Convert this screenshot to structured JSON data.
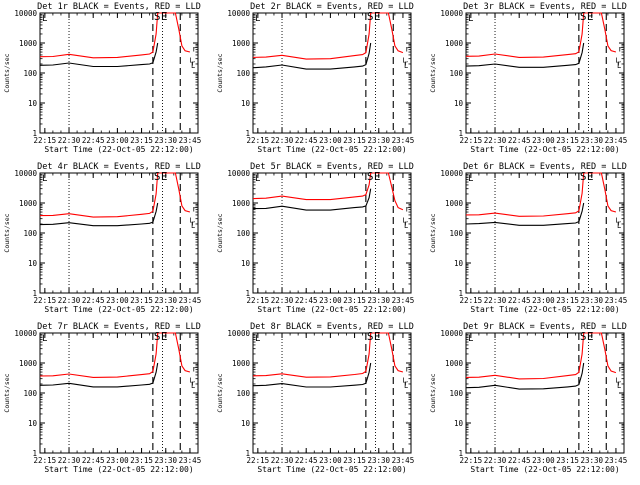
{
  "figure": {
    "xlabel": "Start Time (22-Oct-05 22:12:00)",
    "ylabel": "Counts/sec",
    "x_ticks": [
      "22:15",
      "22:30",
      "22:45",
      "23:00",
      "23:15",
      "23:30",
      "23:45"
    ],
    "y_ticks": [
      "1",
      "10",
      "100",
      "1000",
      "10000"
    ],
    "markers": [
      "S",
      "E",
      "L",
      "r",
      "L",
      "r",
      "L"
    ]
  },
  "colors": {
    "events": "#000000",
    "lld": "#ff0000",
    "axes": "#000000"
  },
  "chart_data": [
    {
      "type": "line",
      "title": "Det 1r BLACK = Events, RED = LLD",
      "xlabel": "Start Time (22-Oct-05 22:12:00)",
      "ylabel": "Counts/sec",
      "y_scale": "log",
      "ylim": [
        1,
        10000
      ],
      "xlim": [
        "22:12",
        "23:50"
      ],
      "x_ticks": [
        "22:15",
        "22:30",
        "22:45",
        "23:00",
        "23:15",
        "23:30",
        "23:45"
      ],
      "y_ticks": [
        "1",
        "10",
        "100",
        "1000",
        "10000"
      ],
      "series": [
        {
          "name": "Events",
          "color": "#000000",
          "x": [
            "22:12",
            "22:20",
            "22:30",
            "22:45",
            "23:00",
            "23:15",
            "23:20",
            "23:22",
            "23:24",
            "23:25"
          ],
          "y": [
            180,
            185,
            215,
            165,
            165,
            190,
            200,
            220,
            500,
            1000
          ]
        },
        {
          "name": "LLD",
          "color": "#ff0000",
          "x": [
            "22:12",
            "22:20",
            "22:30",
            "22:45",
            "23:00",
            "23:15",
            "23:20",
            "23:22",
            "23:24",
            "23:25",
            "23:36",
            "23:38",
            "23:40",
            "23:42",
            "23:45"
          ],
          "y": [
            350,
            355,
            420,
            320,
            330,
            400,
            430,
            500,
            2000,
            10000,
            10000,
            3000,
            800,
            550,
            500
          ]
        }
      ],
      "vlines": [
        {
          "x": "22:30",
          "style": "dotted"
        },
        {
          "x": "23:22",
          "style": "dashed"
        },
        {
          "x": "23:28",
          "style": "dotted"
        },
        {
          "x": "23:39",
          "style": "dashed"
        }
      ]
    },
    {
      "type": "line",
      "title": "Det 2r BLACK = Events, RED = LLD",
      "xlabel": "Start Time (22-Oct-05 22:12:00)",
      "ylabel": "Counts/sec",
      "y_scale": "log",
      "ylim": [
        1,
        10000
      ],
      "xlim": [
        "22:12",
        "23:50"
      ],
      "x_ticks": [
        "22:15",
        "22:30",
        "22:45",
        "23:00",
        "23:15",
        "23:30",
        "23:45"
      ],
      "y_ticks": [
        "1",
        "10",
        "100",
        "1000",
        "10000"
      ],
      "series": [
        {
          "name": "Events",
          "color": "#000000",
          "x": [
            "22:12",
            "22:20",
            "22:30",
            "22:45",
            "23:00",
            "23:15",
            "23:20",
            "23:22",
            "23:24",
            "23:25"
          ],
          "y": [
            150,
            160,
            185,
            135,
            135,
            160,
            170,
            190,
            450,
            1000
          ]
        },
        {
          "name": "LLD",
          "color": "#ff0000",
          "x": [
            "22:12",
            "22:20",
            "22:30",
            "22:45",
            "23:00",
            "23:15",
            "23:20",
            "23:22",
            "23:24",
            "23:25",
            "23:36",
            "23:38",
            "23:40",
            "23:42",
            "23:45"
          ],
          "y": [
            330,
            340,
            390,
            290,
            300,
            380,
            410,
            480,
            2000,
            10000,
            10000,
            3000,
            800,
            550,
            480
          ]
        }
      ],
      "vlines": [
        {
          "x": "22:30",
          "style": "dotted"
        },
        {
          "x": "23:22",
          "style": "dashed"
        },
        {
          "x": "23:28",
          "style": "dotted"
        },
        {
          "x": "23:39",
          "style": "dashed"
        }
      ]
    },
    {
      "type": "line",
      "title": "Det 3r BLACK = Events, RED = LLD",
      "xlabel": "Start Time (22-Oct-05 22:12:00)",
      "ylabel": "Counts/sec",
      "y_scale": "log",
      "ylim": [
        1,
        10000
      ],
      "xlim": [
        "22:12",
        "23:50"
      ],
      "x_ticks": [
        "22:15",
        "22:30",
        "22:45",
        "23:00",
        "23:15",
        "23:30",
        "23:45"
      ],
      "y_ticks": [
        "1",
        "10",
        "100",
        "1000",
        "10000"
      ],
      "series": [
        {
          "name": "Events",
          "color": "#000000",
          "x": [
            "22:12",
            "22:20",
            "22:30",
            "22:45",
            "23:00",
            "23:15",
            "23:20",
            "23:22",
            "23:24",
            "23:25"
          ],
          "y": [
            170,
            175,
            200,
            155,
            155,
            180,
            190,
            210,
            480,
            1000
          ]
        },
        {
          "name": "LLD",
          "color": "#ff0000",
          "x": [
            "22:12",
            "22:20",
            "22:30",
            "22:45",
            "23:00",
            "23:15",
            "23:20",
            "23:22",
            "23:24",
            "23:25",
            "23:36",
            "23:38",
            "23:40",
            "23:42",
            "23:45"
          ],
          "y": [
            360,
            365,
            430,
            330,
            340,
            410,
            440,
            510,
            2000,
            10000,
            10000,
            3000,
            800,
            560,
            500
          ]
        }
      ],
      "vlines": [
        {
          "x": "22:30",
          "style": "dotted"
        },
        {
          "x": "23:22",
          "style": "dashed"
        },
        {
          "x": "23:28",
          "style": "dotted"
        },
        {
          "x": "23:39",
          "style": "dashed"
        }
      ]
    },
    {
      "type": "line",
      "title": "Det 4r BLACK = Events, RED = LLD",
      "xlabel": "Start Time (22-Oct-05 22:12:00)",
      "ylabel": "Counts/sec",
      "y_scale": "log",
      "ylim": [
        1,
        10000
      ],
      "xlim": [
        "22:12",
        "23:50"
      ],
      "x_ticks": [
        "22:15",
        "22:30",
        "22:45",
        "23:00",
        "23:15",
        "23:30",
        "23:45"
      ],
      "y_ticks": [
        "1",
        "10",
        "100",
        "1000",
        "10000"
      ],
      "series": [
        {
          "name": "Events",
          "color": "#000000",
          "x": [
            "22:12",
            "22:20",
            "22:30",
            "22:45",
            "23:00",
            "23:15",
            "23:20",
            "23:22",
            "23:24",
            "23:25"
          ],
          "y": [
            190,
            195,
            220,
            175,
            175,
            200,
            210,
            230,
            520,
            1000
          ]
        },
        {
          "name": "LLD",
          "color": "#ff0000",
          "x": [
            "22:12",
            "22:20",
            "22:30",
            "22:45",
            "23:00",
            "23:15",
            "23:20",
            "23:22",
            "23:24",
            "23:25",
            "23:36",
            "23:38",
            "23:40",
            "23:42",
            "23:45"
          ],
          "y": [
            380,
            385,
            440,
            340,
            350,
            420,
            450,
            530,
            2000,
            10000,
            10000,
            3000,
            800,
            560,
            500
          ]
        }
      ],
      "vlines": [
        {
          "x": "22:30",
          "style": "dotted"
        },
        {
          "x": "23:22",
          "style": "dashed"
        },
        {
          "x": "23:28",
          "style": "dotted"
        },
        {
          "x": "23:39",
          "style": "dashed"
        }
      ]
    },
    {
      "type": "line",
      "title": "Det 5r BLACK = Events, RED = LLD",
      "xlabel": "Start Time (22-Oct-05 22:12:00)",
      "ylabel": "Counts/sec",
      "y_scale": "log",
      "ylim": [
        1,
        10000
      ],
      "xlim": [
        "22:12",
        "23:50"
      ],
      "x_ticks": [
        "22:15",
        "22:30",
        "22:45",
        "23:00",
        "23:15",
        "23:30",
        "23:45"
      ],
      "y_ticks": [
        "1",
        "10",
        "100",
        "1000",
        "10000"
      ],
      "series": [
        {
          "name": "Events",
          "color": "#000000",
          "x": [
            "22:12",
            "22:20",
            "22:30",
            "22:45",
            "23:00",
            "23:15",
            "23:20",
            "23:22",
            "23:24",
            "23:25"
          ],
          "y": [
            650,
            660,
            780,
            580,
            580,
            700,
            740,
            800,
            1500,
            3000
          ]
        },
        {
          "name": "LLD",
          "color": "#ff0000",
          "x": [
            "22:12",
            "22:20",
            "22:30",
            "22:45",
            "23:00",
            "23:15",
            "23:20",
            "23:22",
            "23:24",
            "23:25",
            "23:36",
            "23:38",
            "23:40",
            "23:42",
            "23:45"
          ],
          "y": [
            1400,
            1450,
            1700,
            1300,
            1300,
            1600,
            1700,
            1900,
            4000,
            10000,
            10000,
            3500,
            1200,
            700,
            600
          ]
        }
      ],
      "vlines": [
        {
          "x": "22:30",
          "style": "dotted"
        },
        {
          "x": "23:22",
          "style": "dashed"
        },
        {
          "x": "23:28",
          "style": "dotted"
        },
        {
          "x": "23:39",
          "style": "dashed"
        }
      ]
    },
    {
      "type": "line",
      "title": "Det 6r BLACK = Events, RED = LLD",
      "xlabel": "Start Time (22-Oct-05 22:12:00)",
      "ylabel": "Counts/sec",
      "y_scale": "log",
      "ylim": [
        1,
        10000
      ],
      "xlim": [
        "22:12",
        "23:50"
      ],
      "x_ticks": [
        "22:15",
        "22:30",
        "22:45",
        "23:00",
        "23:15",
        "23:30",
        "23:45"
      ],
      "y_ticks": [
        "1",
        "10",
        "100",
        "1000",
        "10000"
      ],
      "series": [
        {
          "name": "Events",
          "color": "#000000",
          "x": [
            "22:12",
            "22:20",
            "22:30",
            "22:45",
            "23:00",
            "23:15",
            "23:20",
            "23:22",
            "23:24",
            "23:25"
          ],
          "y": [
            200,
            205,
            225,
            180,
            180,
            205,
            215,
            240,
            530,
            1000
          ]
        },
        {
          "name": "LLD",
          "color": "#ff0000",
          "x": [
            "22:12",
            "22:20",
            "22:30",
            "22:45",
            "23:00",
            "23:15",
            "23:20",
            "23:22",
            "23:24",
            "23:25",
            "23:36",
            "23:38",
            "23:40",
            "23:42",
            "23:45"
          ],
          "y": [
            400,
            405,
            460,
            360,
            370,
            440,
            470,
            550,
            2100,
            10000,
            10000,
            3000,
            800,
            560,
            500
          ]
        }
      ],
      "vlines": [
        {
          "x": "22:30",
          "style": "dotted"
        },
        {
          "x": "23:22",
          "style": "dashed"
        },
        {
          "x": "23:28",
          "style": "dotted"
        },
        {
          "x": "23:39",
          "style": "dashed"
        }
      ]
    },
    {
      "type": "line",
      "title": "Det 7r BLACK = Events, RED = LLD",
      "xlabel": "Start Time (22-Oct-05 22:12:00)",
      "ylabel": "Counts/sec",
      "y_scale": "log",
      "ylim": [
        1,
        10000
      ],
      "xlim": [
        "22:12",
        "23:50"
      ],
      "x_ticks": [
        "22:15",
        "22:30",
        "22:45",
        "23:00",
        "23:15",
        "23:30",
        "23:45"
      ],
      "y_ticks": [
        "1",
        "10",
        "100",
        "1000",
        "10000"
      ],
      "series": [
        {
          "name": "Events",
          "color": "#000000",
          "x": [
            "22:12",
            "22:20",
            "22:30",
            "22:45",
            "23:00",
            "23:15",
            "23:20",
            "23:22",
            "23:24",
            "23:25"
          ],
          "y": [
            180,
            185,
            210,
            160,
            160,
            185,
            195,
            215,
            490,
            1000
          ]
        },
        {
          "name": "LLD",
          "color": "#ff0000",
          "x": [
            "22:12",
            "22:20",
            "22:30",
            "22:45",
            "23:00",
            "23:15",
            "23:20",
            "23:22",
            "23:24",
            "23:25",
            "23:36",
            "23:38",
            "23:40",
            "23:42",
            "23:45"
          ],
          "y": [
            370,
            375,
            430,
            330,
            340,
            410,
            440,
            520,
            2000,
            10000,
            10000,
            3000,
            800,
            560,
            500
          ]
        }
      ],
      "vlines": [
        {
          "x": "22:30",
          "style": "dotted"
        },
        {
          "x": "23:22",
          "style": "dashed"
        },
        {
          "x": "23:28",
          "style": "dotted"
        },
        {
          "x": "23:39",
          "style": "dashed"
        }
      ]
    },
    {
      "type": "line",
      "title": "Det 8r BLACK = Events, RED = LLD",
      "xlabel": "Start Time (22-Oct-05 22:12:00)",
      "ylabel": "Counts/sec",
      "y_scale": "log",
      "ylim": [
        1,
        10000
      ],
      "xlim": [
        "22:12",
        "23:50"
      ],
      "x_ticks": [
        "22:15",
        "22:30",
        "22:45",
        "23:00",
        "23:15",
        "23:30",
        "23:45"
      ],
      "y_ticks": [
        "1",
        "10",
        "100",
        "1000",
        "10000"
      ],
      "series": [
        {
          "name": "Events",
          "color": "#000000",
          "x": [
            "22:12",
            "22:20",
            "22:30",
            "22:45",
            "23:00",
            "23:15",
            "23:20",
            "23:22",
            "23:24",
            "23:25"
          ],
          "y": [
            175,
            180,
            205,
            158,
            158,
            182,
            192,
            212,
            485,
            1000
          ]
        },
        {
          "name": "LLD",
          "color": "#ff0000",
          "x": [
            "22:12",
            "22:20",
            "22:30",
            "22:45",
            "23:00",
            "23:15",
            "23:20",
            "23:22",
            "23:24",
            "23:25",
            "23:36",
            "23:38",
            "23:40",
            "23:42",
            "23:45"
          ],
          "y": [
            375,
            380,
            435,
            335,
            345,
            415,
            445,
            525,
            2000,
            10000,
            10000,
            3000,
            800,
            560,
            500
          ]
        }
      ],
      "vlines": [
        {
          "x": "22:30",
          "style": "dotted"
        },
        {
          "x": "23:22",
          "style": "dashed"
        },
        {
          "x": "23:28",
          "style": "dotted"
        },
        {
          "x": "23:39",
          "style": "dashed"
        }
      ]
    },
    {
      "type": "line",
      "title": "Det 9r BLACK = Events, RED = LLD",
      "xlabel": "Start Time (22-Oct-05 22:12:00)",
      "ylabel": "Counts/sec",
      "y_scale": "log",
      "ylim": [
        1,
        10000
      ],
      "xlim": [
        "22:12",
        "23:50"
      ],
      "x_ticks": [
        "22:15",
        "22:30",
        "22:45",
        "23:00",
        "23:15",
        "23:30",
        "23:45"
      ],
      "y_ticks": [
        "1",
        "10",
        "100",
        "1000",
        "10000"
      ],
      "series": [
        {
          "name": "Events",
          "color": "#000000",
          "x": [
            "22:12",
            "22:20",
            "22:30",
            "22:45",
            "23:00",
            "23:15",
            "23:20",
            "23:22",
            "23:24",
            "23:25"
          ],
          "y": [
            150,
            155,
            180,
            135,
            138,
            160,
            170,
            190,
            450,
            1000
          ]
        },
        {
          "name": "LLD",
          "color": "#ff0000",
          "x": [
            "22:12",
            "22:20",
            "22:30",
            "22:45",
            "23:00",
            "23:15",
            "23:20",
            "23:22",
            "23:24",
            "23:25",
            "23:36",
            "23:38",
            "23:40",
            "23:42",
            "23:45"
          ],
          "y": [
            330,
            335,
            390,
            295,
            305,
            380,
            410,
            490,
            2000,
            10000,
            10000,
            3000,
            800,
            540,
            480
          ]
        }
      ],
      "vlines": [
        {
          "x": "22:30",
          "style": "dotted"
        },
        {
          "x": "23:22",
          "style": "dashed"
        },
        {
          "x": "23:28",
          "style": "dotted"
        },
        {
          "x": "23:39",
          "style": "dashed"
        }
      ]
    }
  ]
}
